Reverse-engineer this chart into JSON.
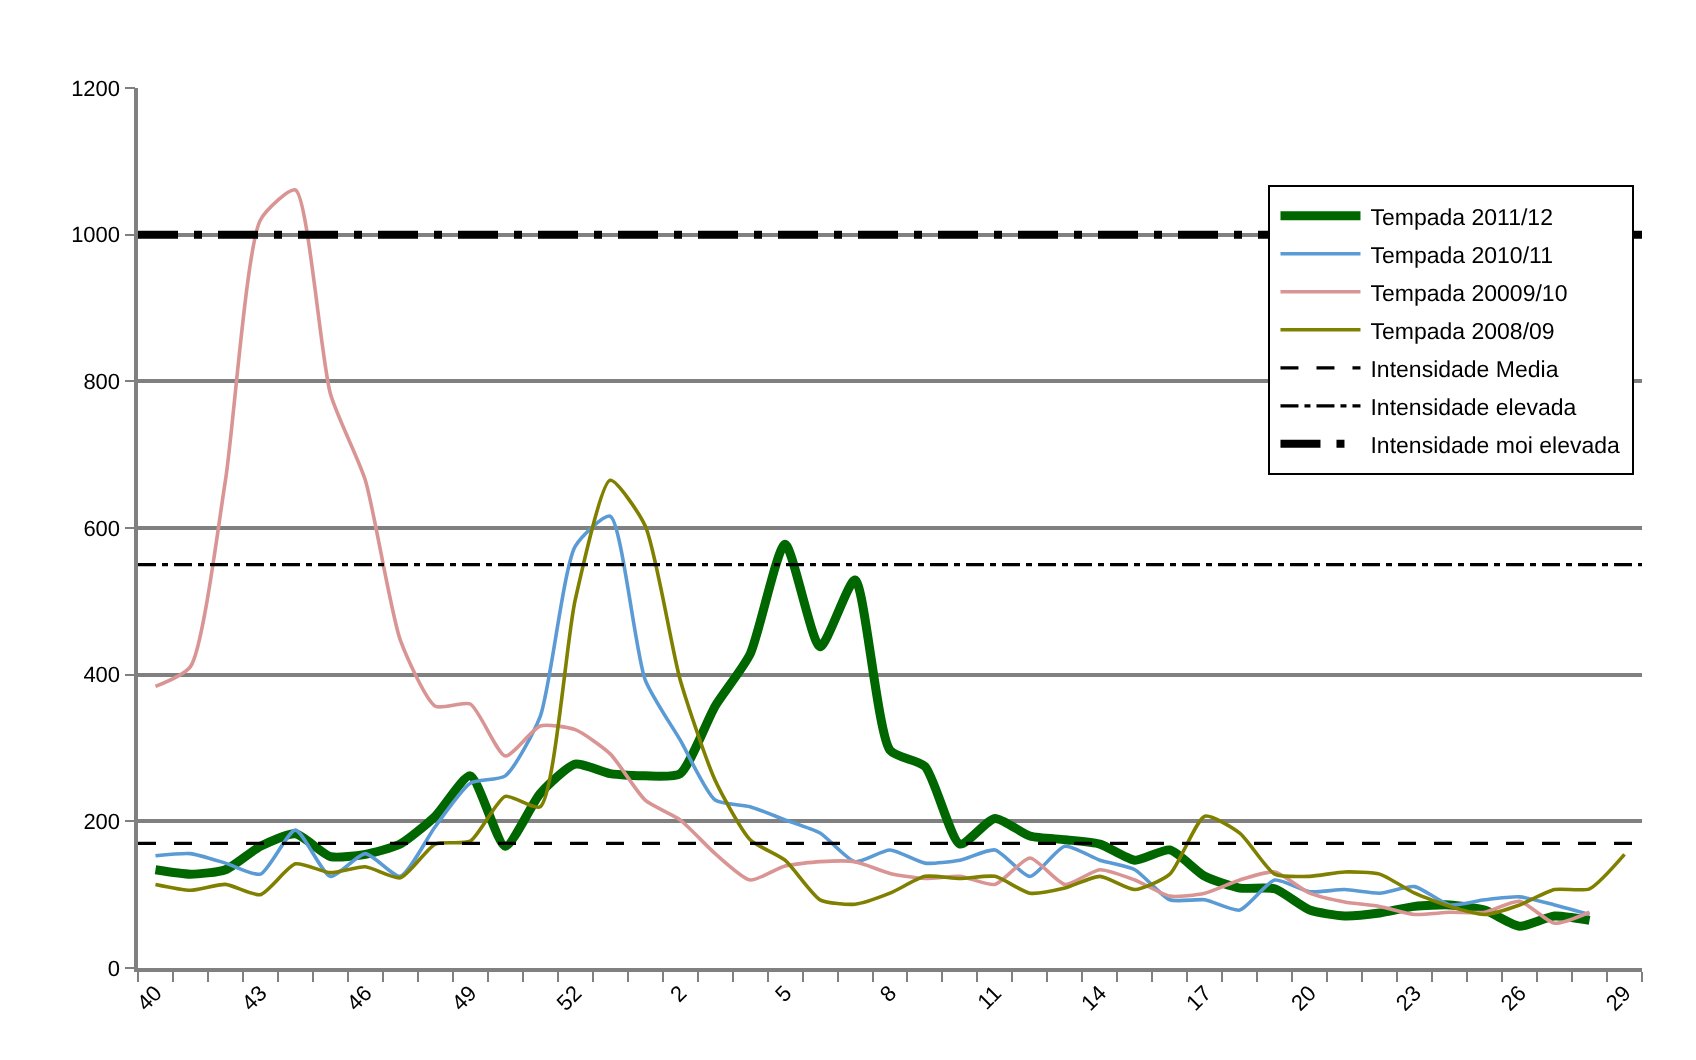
{
  "chart_data": {
    "type": "line",
    "categories": [
      "40",
      null,
      null,
      "43",
      null,
      null,
      "46",
      null,
      null,
      "49",
      null,
      null,
      "52",
      null,
      null,
      "2",
      null,
      null,
      "5",
      null,
      null,
      "8",
      null,
      null,
      "11",
      null,
      null,
      "14",
      null,
      null,
      "17",
      null,
      null,
      "20",
      null,
      null,
      "23",
      null,
      null,
      "26",
      null,
      null,
      "29"
    ],
    "series": [
      {
        "name": "Tempada 2011/12",
        "color": "#006600",
        "values": [
          134,
          128,
          134,
          166,
          183,
          152,
          155,
          169,
          207,
          262,
          166,
          238,
          278,
          265,
          262,
          265,
          357,
          428,
          578,
          438,
          529,
          297,
          275,
          169,
          204,
          180,
          175,
          169,
          147,
          161,
          125,
          109,
          108,
          79,
          71,
          75,
          84,
          86,
          79,
          57,
          71,
          65,
          null
        ]
      },
      {
        "name": "Tempada 2010/11",
        "color": "#5b9bd5",
        "values": [
          153,
          156,
          143,
          128,
          188,
          125,
          156,
          125,
          193,
          252,
          262,
          343,
          575,
          616,
          393,
          311,
          229,
          220,
          202,
          184,
          145,
          161,
          143,
          147,
          161,
          125,
          166,
          147,
          134,
          93,
          93,
          79,
          120,
          104,
          107,
          102,
          111,
          86,
          93,
          97,
          86,
          73,
          null
        ]
      },
      {
        "name": "Tempada 20009/10",
        "color": "#d99594",
        "values": [
          384,
          411,
          665,
          1020,
          1061,
          783,
          665,
          447,
          357,
          360,
          289,
          330,
          325,
          292,
          229,
          202,
          156,
          120,
          139,
          145,
          145,
          129,
          122,
          125,
          114,
          150,
          114,
          134,
          120,
          98,
          102,
          120,
          131,
          102,
          90,
          84,
          73,
          76,
          76,
          91,
          61,
          76,
          null
        ]
      },
      {
        "name": "Tempada 2008/09",
        "color": "#808000",
        "values": [
          114,
          106,
          114,
          100,
          142,
          130,
          138,
          123,
          169,
          173,
          234,
          220,
          502,
          665,
          603,
          393,
          256,
          175,
          147,
          93,
          87,
          102,
          125,
          122,
          125,
          102,
          109,
          125,
          107,
          128,
          207,
          184,
          128,
          125,
          131,
          128,
          102,
          84,
          73,
          86,
          107,
          108,
          155
        ]
      }
    ],
    "ref_lines": [
      {
        "axis": "y",
        "value": 170,
        "label": "Intensidade Media",
        "color": "#000000",
        "line_style": "dashed"
      },
      {
        "axis": "y",
        "value": 550,
        "label": "Intensidade elevada",
        "color": "#000000",
        "line_style": "dashdot"
      },
      {
        "axis": "y",
        "value": 1000,
        "label": "Intensidade moi elevada",
        "color": "#000000",
        "line_style": "longdashdot"
      }
    ],
    "ylim": [
      0,
      1200
    ],
    "yticks": [
      0,
      200,
      400,
      600,
      800,
      1000,
      1200
    ],
    "grid": "y",
    "legend": "top right",
    "line_style": "solid",
    "marker": "none"
  }
}
